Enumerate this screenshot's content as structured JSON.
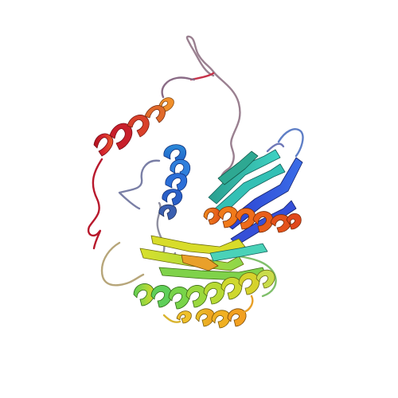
{
  "image": {
    "subject": "protein-ribbon-structure",
    "background_color": "#ffffff",
    "palette": {
      "n_terminus": "#2a2ad6",
      "blue": "#2f6fe0",
      "cyan": "#2ec6c6",
      "teal": "#3bb89a",
      "green": "#6fd24f",
      "yellow": "#d6df2b",
      "gold": "#f2b326",
      "orange": "#f07a1a",
      "red": "#c4182a",
      "coil": "#8a8a96"
    }
  }
}
